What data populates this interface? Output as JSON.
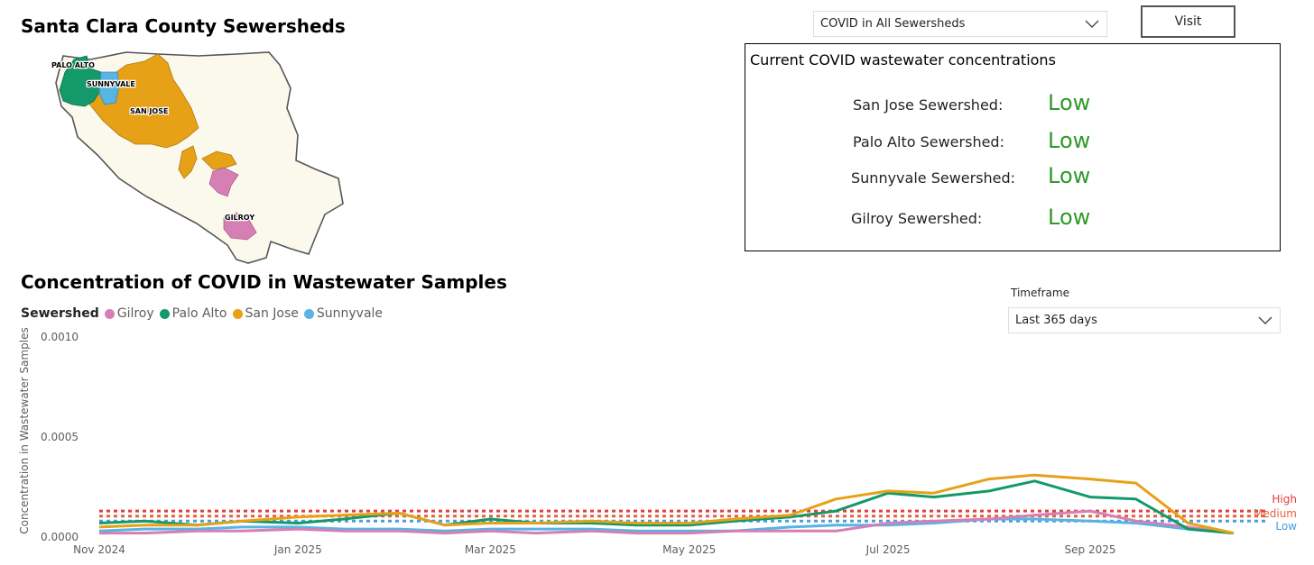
{
  "map": {
    "title": "Santa Clara County Sewersheds",
    "labels": {
      "palo_alto": "PALO ALTO",
      "sunnyvale": "SUNNYVALE",
      "san_jose": "SAN JOSE",
      "gilroy": "GILROY"
    }
  },
  "sewershed_select": {
    "value": "COVID in All Sewersheds"
  },
  "visit_button": {
    "label": "Visit"
  },
  "status": {
    "title": "Current COVID wastewater concentrations",
    "rows": [
      {
        "label": "San Jose Sewershed:",
        "value": "Low"
      },
      {
        "label": "Palo Alto Sewershed:",
        "value": "Low"
      },
      {
        "label": "Sunnyvale Sewershed:",
        "value": "Low"
      },
      {
        "label": "Gilroy Sewershed:",
        "value": "Low"
      }
    ]
  },
  "timeframe": {
    "label": "Timeframe",
    "value": "Last 365 days"
  },
  "colors": {
    "gilroy": "#d67fb4",
    "palo_alto": "#14996a",
    "san_jose": "#e6a117",
    "sunnyvale": "#58b4e2",
    "high": "#e04040",
    "medium": "#e8603c",
    "low": "#4a9de0",
    "status_low": "#2e9a2a"
  },
  "chart_data": {
    "type": "line",
    "title": "Concentration of COVID in Wastewater Samples",
    "legend_title": "Sewershed",
    "legend_position": "top-left",
    "ylabel": "Concentration in Wastewater Samples",
    "xlabel": "",
    "ylim": [
      0,
      0.001
    ],
    "yticks": [
      "0.0000",
      "0.0005",
      "0.0010"
    ],
    "xlim": [
      "2024-11-01",
      "2025-10-20"
    ],
    "xticks": [
      {
        "date": "2024-11-01",
        "label": "Nov 2024"
      },
      {
        "date": "2025-01-01",
        "label": "Jan 2025"
      },
      {
        "date": "2025-03-01",
        "label": "Mar 2025"
      },
      {
        "date": "2025-05-01",
        "label": "May 2025"
      },
      {
        "date": "2025-07-01",
        "label": "Jul 2025"
      },
      {
        "date": "2025-09-01",
        "label": "Sep 2025"
      }
    ],
    "grid": false,
    "thresholds": [
      {
        "name": "High",
        "value": 0.00013
      },
      {
        "name": "Medium",
        "value": 0.000105
      },
      {
        "name": "Low",
        "value": 8e-05
      }
    ],
    "x": [
      "2024-11-01",
      "2024-11-15",
      "2024-12-01",
      "2024-12-15",
      "2025-01-01",
      "2025-01-15",
      "2025-02-01",
      "2025-02-15",
      "2025-03-01",
      "2025-03-15",
      "2025-04-01",
      "2025-04-15",
      "2025-05-01",
      "2025-05-15",
      "2025-06-01",
      "2025-06-15",
      "2025-07-01",
      "2025-07-15",
      "2025-08-01",
      "2025-08-15",
      "2025-09-01",
      "2025-09-15",
      "2025-10-01",
      "2025-10-15"
    ],
    "series": [
      {
        "name": "Gilroy",
        "values": [
          2e-05,
          2e-05,
          3e-05,
          3e-05,
          4e-05,
          3e-05,
          3e-05,
          2e-05,
          3e-05,
          2e-05,
          3e-05,
          2e-05,
          2e-05,
          3e-05,
          3e-05,
          3e-05,
          7e-05,
          8e-05,
          9e-05,
          0.00011,
          0.00013,
          8e-05,
          5e-05,
          2e-05
        ]
      },
      {
        "name": "Palo Alto",
        "values": [
          7e-05,
          8e-05,
          6e-05,
          8e-05,
          7e-05,
          9e-05,
          0.00012,
          6e-05,
          9e-05,
          7e-05,
          7e-05,
          6e-05,
          6e-05,
          8e-05,
          0.0001,
          0.00013,
          0.00022,
          0.0002,
          0.00023,
          0.00028,
          0.0002,
          0.00019,
          4e-05,
          2e-05
        ]
      },
      {
        "name": "San Jose",
        "values": [
          5e-05,
          6e-05,
          6e-05,
          8e-05,
          0.0001,
          0.00011,
          0.00012,
          6e-05,
          7e-05,
          7e-05,
          8e-05,
          7e-05,
          7e-05,
          9e-05,
          0.00011,
          0.00019,
          0.00023,
          0.00022,
          0.00029,
          0.00031,
          0.00029,
          0.00027,
          7e-05,
          2e-05
        ]
      },
      {
        "name": "Sunnyvale",
        "values": [
          3e-05,
          4e-05,
          4e-05,
          5e-05,
          5e-05,
          4e-05,
          4e-05,
          3e-05,
          4e-05,
          4e-05,
          4e-05,
          3e-05,
          3e-05,
          3e-05,
          5e-05,
          6e-05,
          6e-05,
          7e-05,
          9e-05,
          9e-05,
          8e-05,
          7e-05,
          4e-05,
          2e-05
        ]
      }
    ]
  }
}
